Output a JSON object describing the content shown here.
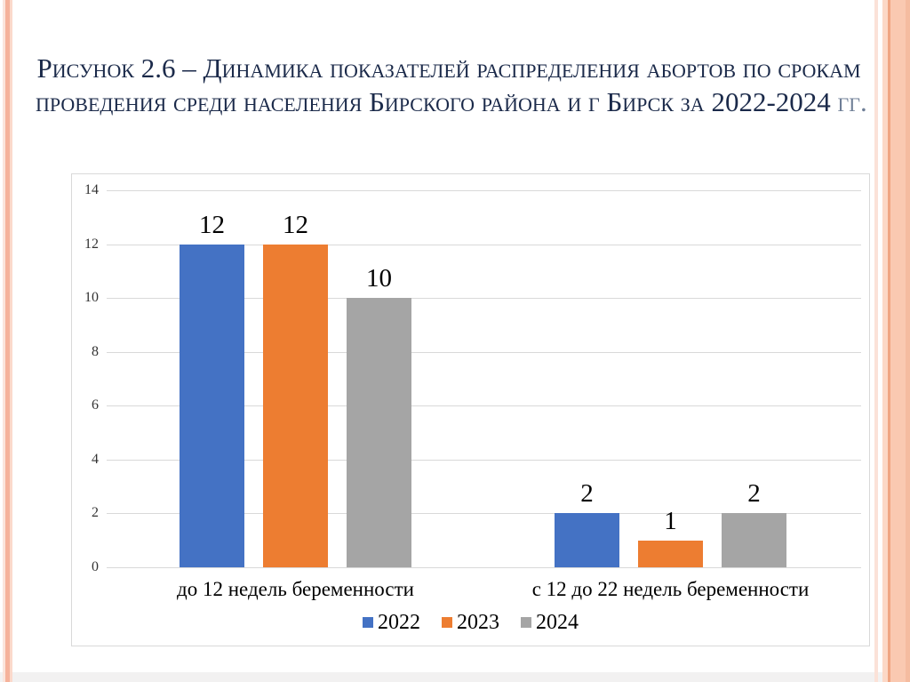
{
  "slide": {
    "title": {
      "line1": "Рисунок 2.6 – Динамика  показателей распределения абортов по срокам",
      "line2_main": "проведения среди населения Бирского района и г Бирск за 2022-2024",
      "line2_suffix": " гг.",
      "color": "#1B2A4A",
      "suffix_color": "#6E7E96"
    },
    "border_accent_color": "#F5B29B"
  },
  "chart_data": {
    "type": "bar",
    "categories": [
      "до 12 недель беременности",
      "с 12 до 22 недель беременности"
    ],
    "series": [
      {
        "name": "2022",
        "color": "#4472C4",
        "values": [
          12,
          2
        ]
      },
      {
        "name": "2023",
        "color": "#ED7D31",
        "values": [
          12,
          1
        ]
      },
      {
        "name": "2024",
        "color": "#A5A5A5",
        "values": [
          10,
          2
        ]
      }
    ],
    "ylim": [
      0,
      14
    ],
    "yticks": [
      0,
      2,
      4,
      6,
      8,
      10,
      12,
      14
    ],
    "grid": true,
    "gridline_color": "#D9D9D9",
    "legend_position": "bottom",
    "data_labels": true
  }
}
